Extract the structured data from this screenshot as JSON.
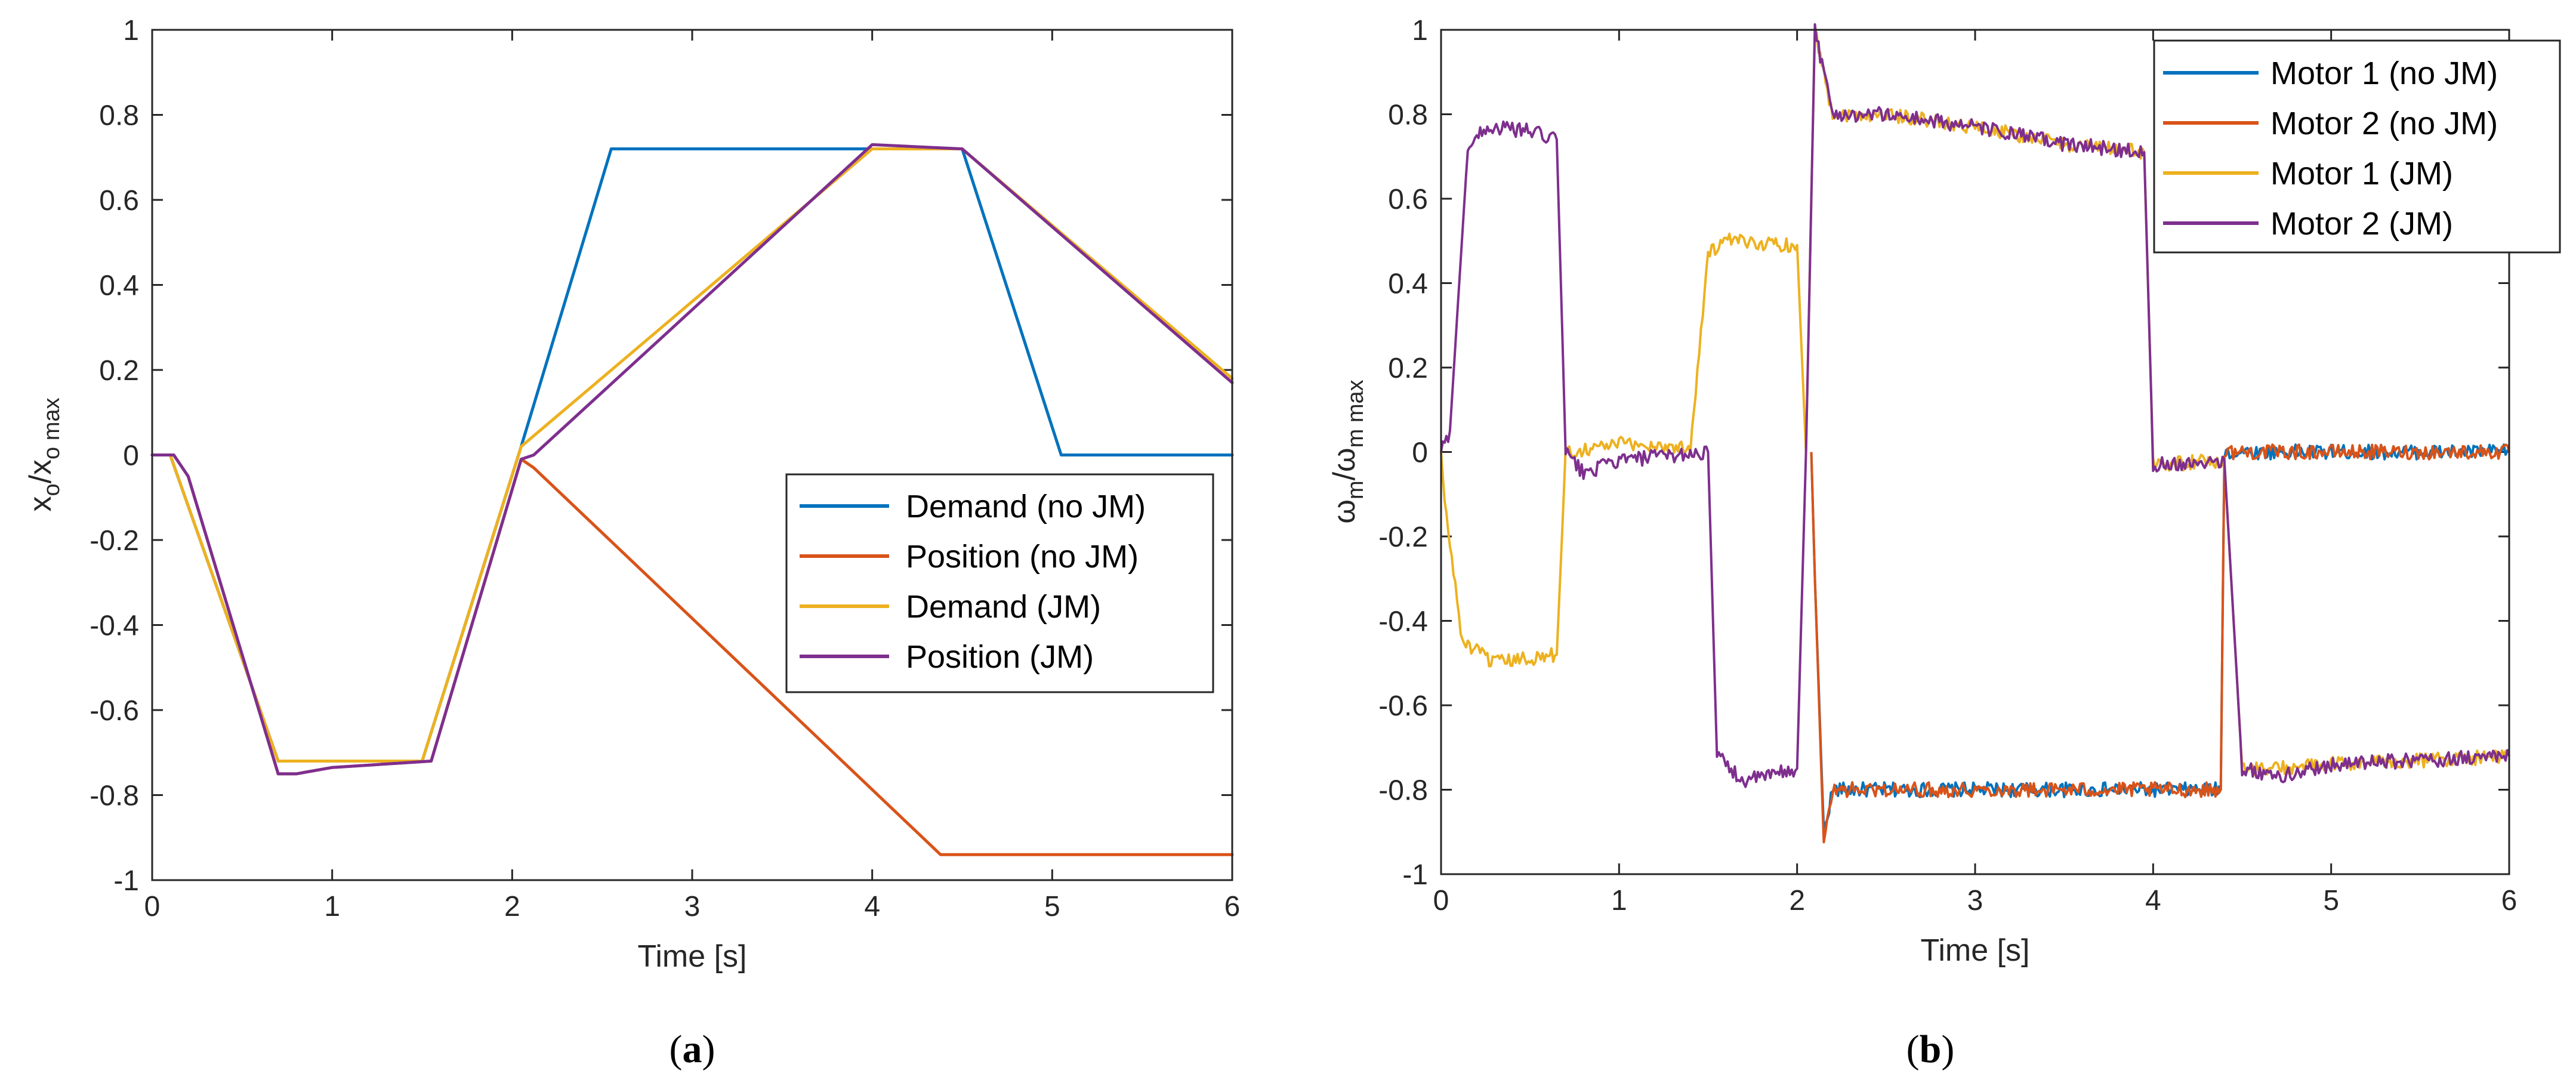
{
  "chart_data": [
    {
      "type": "line",
      "panel": "a",
      "caption": {
        "open": "(",
        "letter": "a",
        "close": ")"
      },
      "xlabel": "Time [s]",
      "ylabel": {
        "base1": "x",
        "sub1": "o",
        "sep": "/x",
        "sub2": "o max"
      },
      "xlim": [
        0,
        6
      ],
      "ylim": [
        -1,
        1
      ],
      "xticks": [
        "0",
        "1",
        "2",
        "3",
        "4",
        "5",
        "6"
      ],
      "yticks": [
        "-1",
        "-0.8",
        "-0.6",
        "-0.4",
        "-0.2",
        "0",
        "0.2",
        "0.4",
        "0.6",
        "0.8",
        "1"
      ],
      "legend_position": "bottom-right",
      "series": [
        {
          "name": "Demand (no JM)",
          "color": "#0072BD",
          "points": [
            [
              0,
              0
            ],
            [
              0.1,
              0
            ],
            [
              0.7,
              -0.72
            ],
            [
              1.5,
              -0.72
            ],
            [
              2.05,
              0.02
            ],
            [
              2.55,
              0.72
            ],
            [
              4.5,
              0.72
            ],
            [
              5.05,
              0
            ],
            [
              6,
              0
            ]
          ]
        },
        {
          "name": "Position (no JM)",
          "color": "#D95319",
          "points": [
            [
              0,
              0
            ],
            [
              0.12,
              0
            ],
            [
              0.2,
              -0.05
            ],
            [
              0.7,
              -0.75
            ],
            [
              0.8,
              -0.75
            ],
            [
              1.0,
              -0.735
            ],
            [
              1.55,
              -0.72
            ],
            [
              2.05,
              -0.01
            ],
            [
              2.12,
              -0.03
            ],
            [
              4.38,
              -0.94
            ],
            [
              6,
              -0.94
            ]
          ]
        },
        {
          "name": "Demand (JM)",
          "color": "#EDB120",
          "points": [
            [
              0,
              0
            ],
            [
              0.1,
              0
            ],
            [
              0.7,
              -0.72
            ],
            [
              1.5,
              -0.72
            ],
            [
              2.05,
              0.02
            ],
            [
              4.0,
              0.72
            ],
            [
              4.5,
              0.72
            ],
            [
              6,
              0.18
            ]
          ]
        },
        {
          "name": "Position (JM)",
          "color": "#7E2F8E",
          "points": [
            [
              0,
              0
            ],
            [
              0.12,
              0
            ],
            [
              0.2,
              -0.05
            ],
            [
              0.7,
              -0.75
            ],
            [
              0.8,
              -0.75
            ],
            [
              1.0,
              -0.735
            ],
            [
              1.55,
              -0.72
            ],
            [
              2.05,
              -0.01
            ],
            [
              2.12,
              0.0
            ],
            [
              4.0,
              0.73
            ],
            [
              4.5,
              0.72
            ],
            [
              6,
              0.17
            ]
          ]
        }
      ]
    },
    {
      "type": "line",
      "panel": "b",
      "caption": {
        "open": "(",
        "letter": "b",
        "close": ")"
      },
      "xlabel": "Time [s]",
      "ylabel": {
        "base1": "ω",
        "sub1": "m",
        "sep": "/ω",
        "sub2": "m max"
      },
      "xlim": [
        0,
        6
      ],
      "ylim": [
        -1,
        1
      ],
      "xticks": [
        "0",
        "1",
        "2",
        "3",
        "4",
        "5",
        "6"
      ],
      "yticks": [
        "-1",
        "-0.8",
        "-0.6",
        "-0.4",
        "-0.2",
        "0",
        "0.2",
        "0.4",
        "0.6",
        "0.8",
        "1"
      ],
      "legend_position": "top-right",
      "series": [
        {
          "name": "Motor 1 (no JM)",
          "color": "#0072BD",
          "points": [
            [
              2.08,
              0
            ],
            [
              2.1,
              -0.3
            ],
            [
              2.15,
              -0.9
            ],
            [
              2.2,
              -0.8
            ],
            [
              3.0,
              -0.8
            ],
            [
              4.38,
              -0.8
            ],
            [
              4.4,
              0
            ],
            [
              6,
              0
            ]
          ]
        },
        {
          "name": "Motor 2 (no JM)",
          "color": "#D95319",
          "points": [
            [
              2.08,
              0
            ],
            [
              2.1,
              -0.3
            ],
            [
              2.15,
              -0.93
            ],
            [
              2.2,
              -0.8
            ],
            [
              3.0,
              -0.8
            ],
            [
              4.38,
              -0.8
            ],
            [
              4.4,
              0
            ],
            [
              6,
              0
            ]
          ]
        },
        {
          "name": "Motor 1 (JM)",
          "color": "#EDB120",
          "points": [
            [
              0,
              0
            ],
            [
              0.02,
              -0.12
            ],
            [
              0.12,
              -0.45
            ],
            [
              0.3,
              -0.5
            ],
            [
              0.65,
              -0.48
            ],
            [
              0.7,
              0
            ],
            [
              1.0,
              0.02
            ],
            [
              1.4,
              0.01
            ],
            [
              1.5,
              0.47
            ],
            [
              1.6,
              0.5
            ],
            [
              2.0,
              0.49
            ],
            [
              2.05,
              0
            ],
            [
              2.1,
              1.0
            ],
            [
              2.2,
              0.8
            ],
            [
              2.5,
              0.8
            ],
            [
              3.0,
              0.77
            ],
            [
              3.5,
              0.73
            ],
            [
              3.95,
              0.71
            ],
            [
              4.0,
              -0.03
            ],
            [
              4.4,
              -0.02
            ],
            [
              4.5,
              -0.75
            ],
            [
              4.7,
              -0.75
            ],
            [
              5.0,
              -0.74
            ],
            [
              5.5,
              -0.73
            ],
            [
              6,
              -0.72
            ]
          ]
        },
        {
          "name": "Motor 2 (JM)",
          "color": "#7E2F8E",
          "points": [
            [
              0,
              0
            ],
            [
              0.05,
              0.05
            ],
            [
              0.15,
              0.72
            ],
            [
              0.25,
              0.77
            ],
            [
              0.5,
              0.76
            ],
            [
              0.65,
              0.74
            ],
            [
              0.7,
              0.0
            ],
            [
              0.8,
              -0.05
            ],
            [
              1.0,
              -0.02
            ],
            [
              1.5,
              0
            ],
            [
              1.55,
              -0.72
            ],
            [
              1.7,
              -0.78
            ],
            [
              2.0,
              -0.75
            ],
            [
              2.05,
              0
            ],
            [
              2.1,
              1.0
            ],
            [
              2.2,
              0.8
            ],
            [
              2.5,
              0.8
            ],
            [
              3.0,
              0.77
            ],
            [
              3.5,
              0.73
            ],
            [
              3.95,
              0.71
            ],
            [
              4.0,
              -0.03
            ],
            [
              4.4,
              -0.02
            ],
            [
              4.5,
              -0.75
            ],
            [
              4.7,
              -0.77
            ],
            [
              5.0,
              -0.74
            ],
            [
              5.5,
              -0.73
            ],
            [
              6,
              -0.72
            ]
          ]
        }
      ]
    }
  ]
}
